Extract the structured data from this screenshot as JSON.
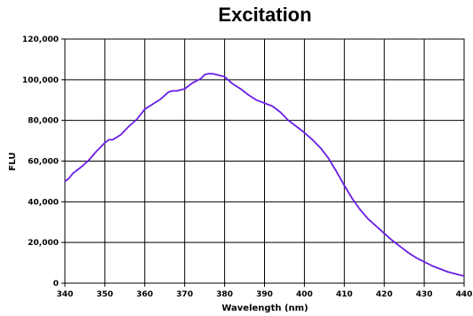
{
  "chart_data": {
    "type": "line",
    "title": "Excitation",
    "xlabel": "Wavelength (nm)",
    "ylabel": "FLU",
    "xlim": [
      340,
      440
    ],
    "ylim": [
      0,
      120000
    ],
    "x_ticks": [
      340,
      350,
      360,
      370,
      380,
      390,
      400,
      410,
      420,
      430,
      440
    ],
    "x_tick_labels": [
      "340",
      "350",
      "360",
      "370",
      "380",
      "390",
      "400",
      "410",
      "420",
      "430",
      "440"
    ],
    "y_ticks": [
      0,
      20000,
      40000,
      60000,
      80000,
      100000,
      120000
    ],
    "y_tick_labels": [
      "0",
      "20,000",
      "40,000",
      "60,000",
      "80,000",
      "100,000",
      "120,000"
    ],
    "grid": true,
    "legend": "none",
    "series": [
      {
        "color": "#6a1ee6",
        "x": [
          340,
          341,
          342,
          344,
          346,
          348,
          350,
          351,
          352,
          354,
          356,
          358,
          360,
          362,
          364,
          366,
          367,
          368,
          370,
          372,
          374,
          375,
          376,
          377,
          378,
          379,
          380,
          382,
          384,
          386,
          388,
          390,
          392,
          394,
          396,
          398,
          400,
          402,
          404,
          406,
          408,
          410,
          412,
          414,
          416,
          418,
          420,
          422,
          424,
          426,
          428,
          430,
          432,
          434,
          436,
          438,
          440
        ],
        "y": [
          50000,
          51500,
          54000,
          57000,
          60500,
          65000,
          69000,
          70500,
          70500,
          73000,
          77000,
          80500,
          85500,
          88000,
          90500,
          94000,
          94500,
          94500,
          95500,
          98500,
          100500,
          102500,
          103000,
          103000,
          102500,
          102000,
          101500,
          98000,
          95500,
          92500,
          90000,
          88500,
          87000,
          84000,
          80000,
          77000,
          74000,
          70500,
          66500,
          61500,
          55000,
          48000,
          41500,
          36000,
          31500,
          28000,
          24500,
          21000,
          18000,
          15000,
          12500,
          10500,
          8500,
          7000,
          5500,
          4500,
          3500
        ]
      }
    ]
  }
}
